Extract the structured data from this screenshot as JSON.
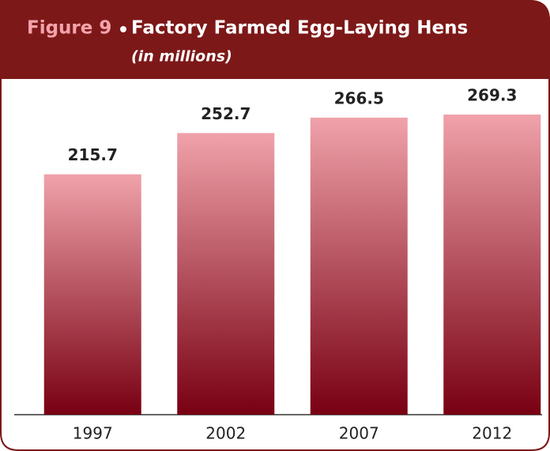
{
  "chart_data": {
    "type": "bar",
    "figure": "Figure 9",
    "title": "Factory Farmed Egg-Laying Hens",
    "subtitle": "(in millions)",
    "categories": [
      "1997",
      "2002",
      "2007",
      "2012"
    ],
    "values": [
      215.7,
      252.7,
      266.5,
      269.3
    ],
    "color_top": "#f0a2aa",
    "color_bottom": "#780012"
  }
}
